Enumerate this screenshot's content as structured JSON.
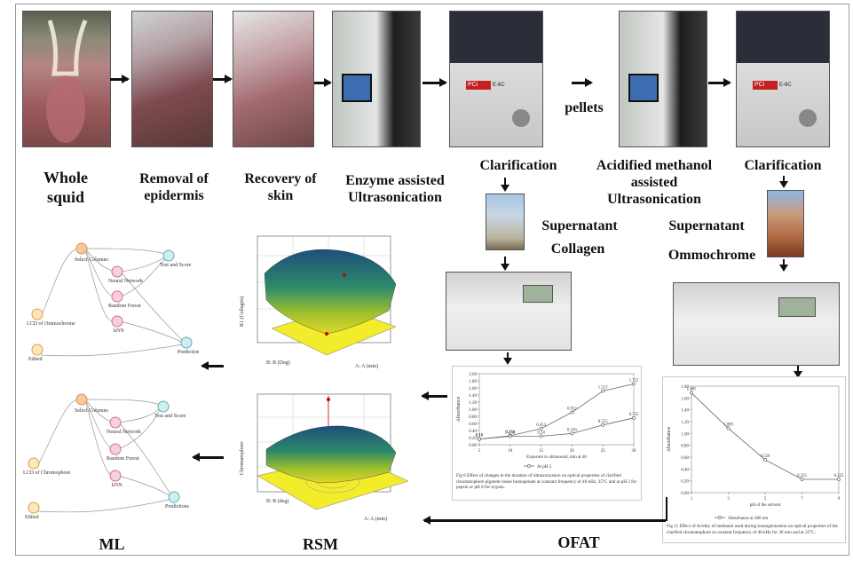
{
  "steps": {
    "whole_squid": "Whole squid",
    "removal": "Removal of epidermis",
    "recovery": "Recovery of skin",
    "enzyme": "Enzyme assisted Ultrasonication",
    "clarification1": "Clarification",
    "pellets": "pellets",
    "acidified": "Acidified methanol assisted Ultrasonication",
    "clarification2": "Clarification",
    "supernatant_collagen_1": "Supernatant",
    "supernatant_collagen_2": "Collagen",
    "supernatant_ommo_1": "Supernatant",
    "supernatant_ommo_2": "Ommochrome",
    "ml": "ML",
    "rsm": "RSM",
    "ofat": "OFAT"
  },
  "instrument_brand": "PCi",
  "instrument_model": "E-6C",
  "ml_workflow": {
    "nodes": [
      "Select Columns",
      "Neural Network",
      "Random Forest",
      "kNN",
      "Test and Score",
      "Predictions",
      "Edited"
    ],
    "top_file": "LCD of Ommochrome",
    "bottom_file": "LCD of Chromophore"
  },
  "rsm_plots": {
    "top_zlabel": "R1 (Collagen)",
    "bottom_zlabel": "Chromatophore",
    "xlabel": "A: A (min)",
    "ylabel_top": "B: B (Deg)",
    "ylabel_bottom": "B: B (deg)"
  },
  "chart_data": [
    {
      "type": "line",
      "title": "",
      "xlabel": "Exposure to ultrasound, min at 40",
      "ylabel": "Absorbance",
      "x": [
        5,
        10,
        15,
        20,
        25,
        30
      ],
      "series": [
        {
          "name": "At pH 2",
          "values": [
            0.16,
            0.254,
            0.453,
            0.912,
            1.512,
            1.712
          ]
        },
        {
          "name": "",
          "values": [
            0.16,
            0.238,
            0.24,
            0.316,
            0.555,
            0.755
          ]
        }
      ],
      "xlim": [
        5,
        30
      ],
      "ylim": [
        0,
        2.0
      ],
      "yticks": [
        "0.00",
        "0.20",
        "0.40",
        "0.60",
        "0.80",
        "1.00",
        "1.20",
        "1.40",
        "1.60",
        "1.80",
        "2.00"
      ],
      "caption": "Fig 6 Effect of changes in the duration of ultrasonication on optical properties of clarified chromatophore pigment tissue homogenate at constant frequency of 40 kHz, 35°C and at pH 2 for pepsin or pH 8 for trypsin."
    },
    {
      "type": "line",
      "title": "",
      "xlabel": "pH of the solvent",
      "ylabel": "Absorbance",
      "x": [
        1,
        3,
        5,
        7,
        9
      ],
      "series": [
        {
          "name": "Absorbance at 280 nm",
          "values": [
            1.685,
            1.089,
            0.556,
            0.225,
            0.225
          ]
        }
      ],
      "xlim": [
        1,
        9
      ],
      "ylim": [
        0,
        1.8
      ],
      "yticks": [
        "0.00",
        "0.20",
        "0.40",
        "0.60",
        "0.80",
        "1.00",
        "1.20",
        "1.40",
        "1.60",
        "1.80"
      ],
      "caption": "Fig 11 Effect of Acidity of methanol used during homogenisation on optical properties of the clarified chromatophore at constant frequency of 40 kHz for 30 min and at 35°C."
    }
  ]
}
